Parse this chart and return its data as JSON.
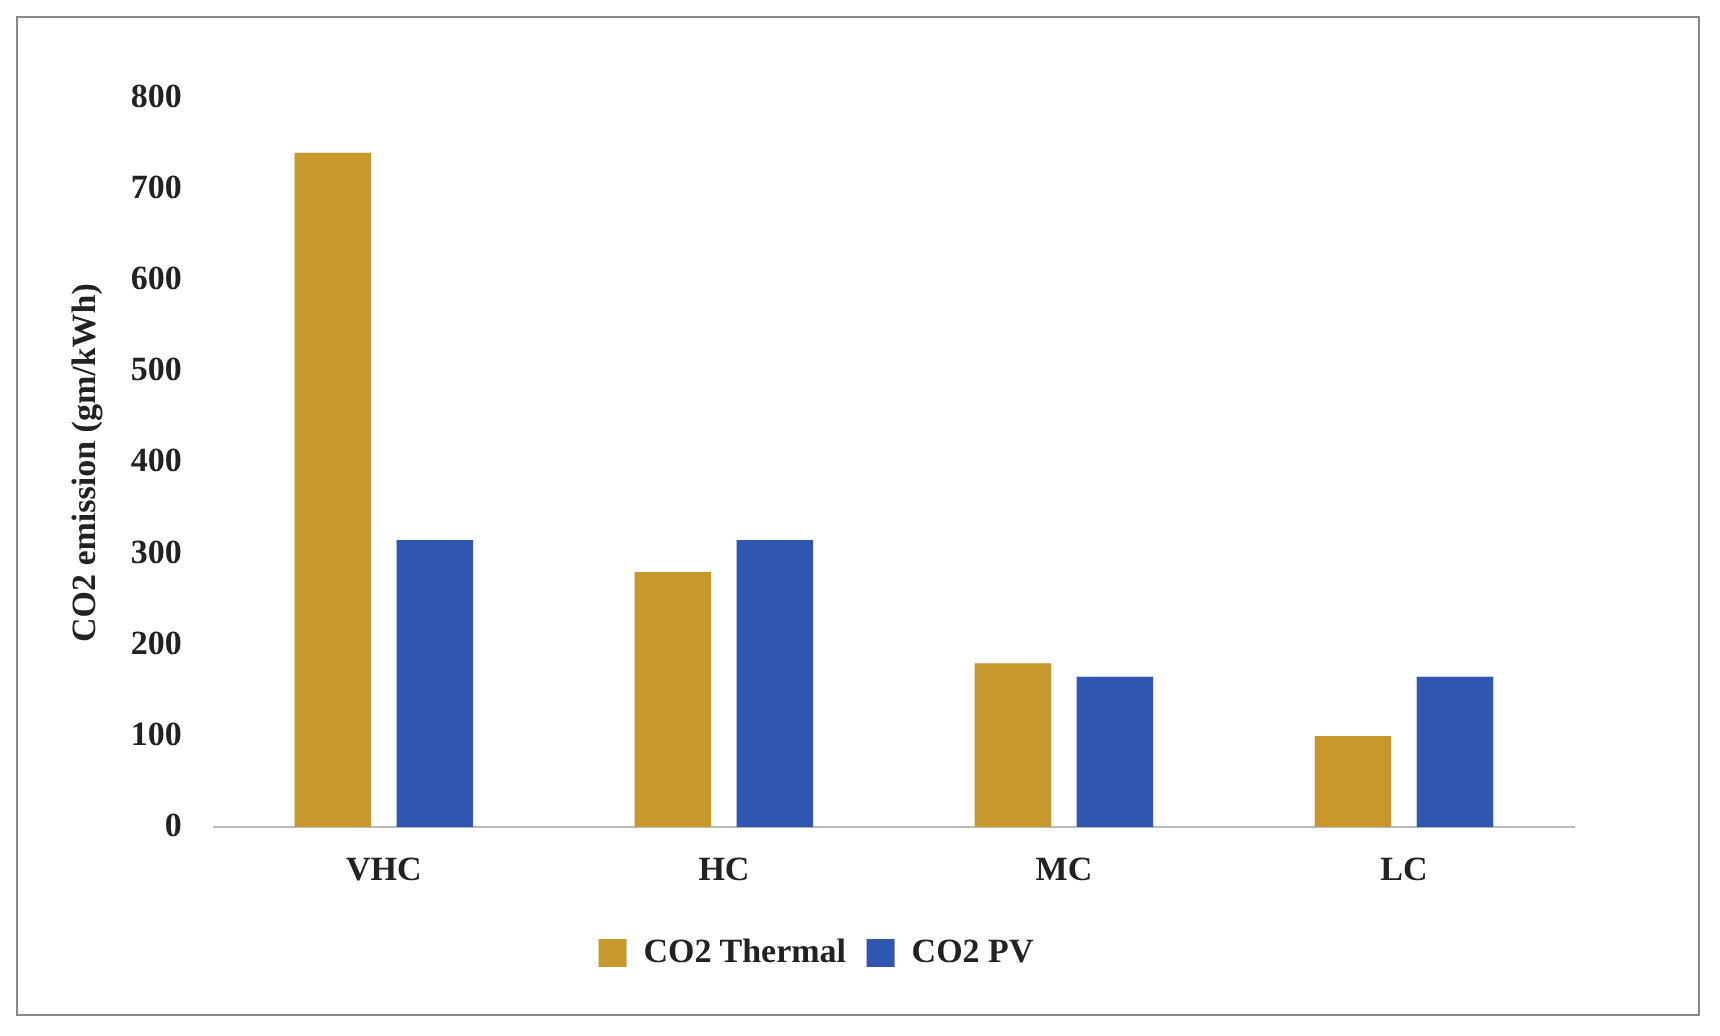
{
  "chart_data": {
    "type": "bar",
    "ylabel": "CO2 emission (gm/kWh)",
    "categories": [
      "VHC",
      "HC",
      "MC",
      "LC"
    ],
    "series": [
      {
        "name": "CO2 Thermal",
        "color": "#c9982c",
        "values": [
          740,
          280,
          180,
          100
        ]
      },
      {
        "name": "CO2 PV",
        "color": "#2f56b0",
        "values": [
          315,
          315,
          165,
          165
        ]
      }
    ],
    "ylim": [
      0,
      800
    ],
    "yticks": [
      0,
      100,
      200,
      300,
      400,
      500,
      600,
      700,
      800
    ],
    "grid": false,
    "legend": "bottom"
  }
}
